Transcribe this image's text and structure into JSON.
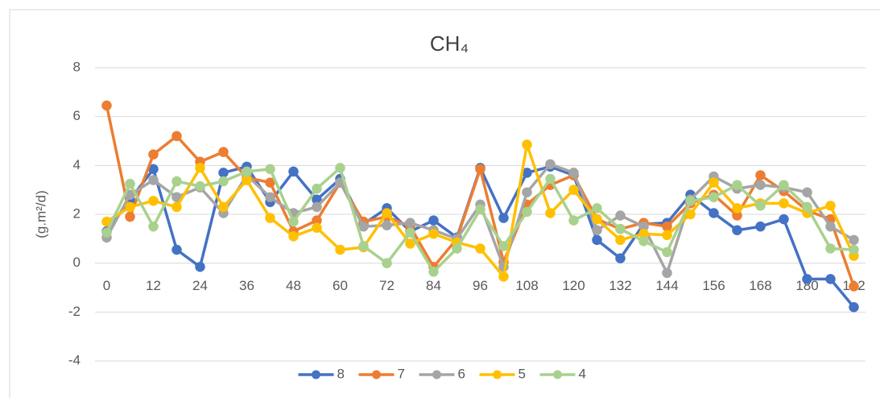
{
  "chart_data": {
    "type": "line",
    "title": "CH₄",
    "y_label": "(g.m²/d)",
    "x": [
      0,
      6,
      12,
      18,
      24,
      30,
      36,
      42,
      48,
      54,
      60,
      66,
      72,
      78,
      84,
      90,
      96,
      102,
      108,
      114,
      120,
      126,
      132,
      138,
      144,
      150,
      156,
      162,
      168,
      174,
      180,
      186,
      192
    ],
    "xlim": [
      -3,
      195
    ],
    "xticks": [
      0,
      12,
      24,
      36,
      48,
      60,
      72,
      84,
      96,
      108,
      120,
      132,
      144,
      156,
      168,
      180,
      192
    ],
    "ylim": [
      -4,
      8
    ],
    "yticks": [
      -4,
      -2,
      0,
      2,
      4,
      6,
      8
    ],
    "grid": true,
    "legend": "bottom",
    "series": [
      {
        "name": "8",
        "color": "#4472c4",
        "values": [
          1.3,
          2.6,
          3.85,
          0.55,
          -0.15,
          3.7,
          3.95,
          2.5,
          3.75,
          2.6,
          3.45,
          1.6,
          2.25,
          1.3,
          1.75,
          1.05,
          3.9,
          1.85,
          3.7,
          3.95,
          3.6,
          0.95,
          0.2,
          1.6,
          1.65,
          2.8,
          2.05,
          1.35,
          1.5,
          1.8,
          -0.65,
          -0.65,
          -1.8
        ]
      },
      {
        "name": "7",
        "color": "#ed7d31",
        "values": [
          6.45,
          1.9,
          4.45,
          5.2,
          4.15,
          4.55,
          3.5,
          3.3,
          1.3,
          1.75,
          3.3,
          1.7,
          1.9,
          1.5,
          -0.15,
          1.0,
          3.85,
          0.05,
          2.4,
          3.2,
          3.6,
          1.8,
          1.4,
          1.65,
          1.5,
          2.45,
          2.8,
          1.95,
          3.6,
          2.95,
          2.15,
          1.8,
          -0.95
        ]
      },
      {
        "name": "6",
        "color": "#a5a5a5",
        "values": [
          1.05,
          2.8,
          3.4,
          2.7,
          3.1,
          2.05,
          3.6,
          2.7,
          2.05,
          2.3,
          3.3,
          1.5,
          1.55,
          1.65,
          1.35,
          1.0,
          2.4,
          -0.15,
          2.9,
          4.05,
          3.7,
          1.35,
          1.95,
          1.5,
          -0.4,
          2.6,
          3.55,
          3.05,
          3.2,
          3.1,
          2.9,
          1.5,
          0.95
        ]
      },
      {
        "name": "5",
        "color": "#ffc000",
        "values": [
          1.7,
          2.3,
          2.55,
          2.3,
          3.9,
          2.3,
          3.4,
          1.85,
          1.1,
          1.45,
          0.55,
          0.65,
          2.05,
          0.8,
          1.2,
          0.85,
          0.6,
          -0.55,
          4.85,
          2.05,
          3.0,
          1.8,
          0.95,
          1.2,
          1.15,
          2.0,
          3.3,
          2.25,
          2.45,
          2.45,
          2.05,
          2.35,
          0.3
        ]
      },
      {
        "name": "4",
        "color": "#a9d18e",
        "values": [
          1.25,
          3.25,
          1.5,
          3.35,
          3.15,
          3.35,
          3.75,
          3.85,
          1.7,
          3.05,
          3.9,
          0.7,
          0.0,
          1.25,
          -0.35,
          0.6,
          2.2,
          0.7,
          2.1,
          3.45,
          1.75,
          2.25,
          1.4,
          0.9,
          0.45,
          2.55,
          2.7,
          3.2,
          2.35,
          3.2,
          2.3,
          0.6,
          0.55
        ]
      }
    ]
  }
}
